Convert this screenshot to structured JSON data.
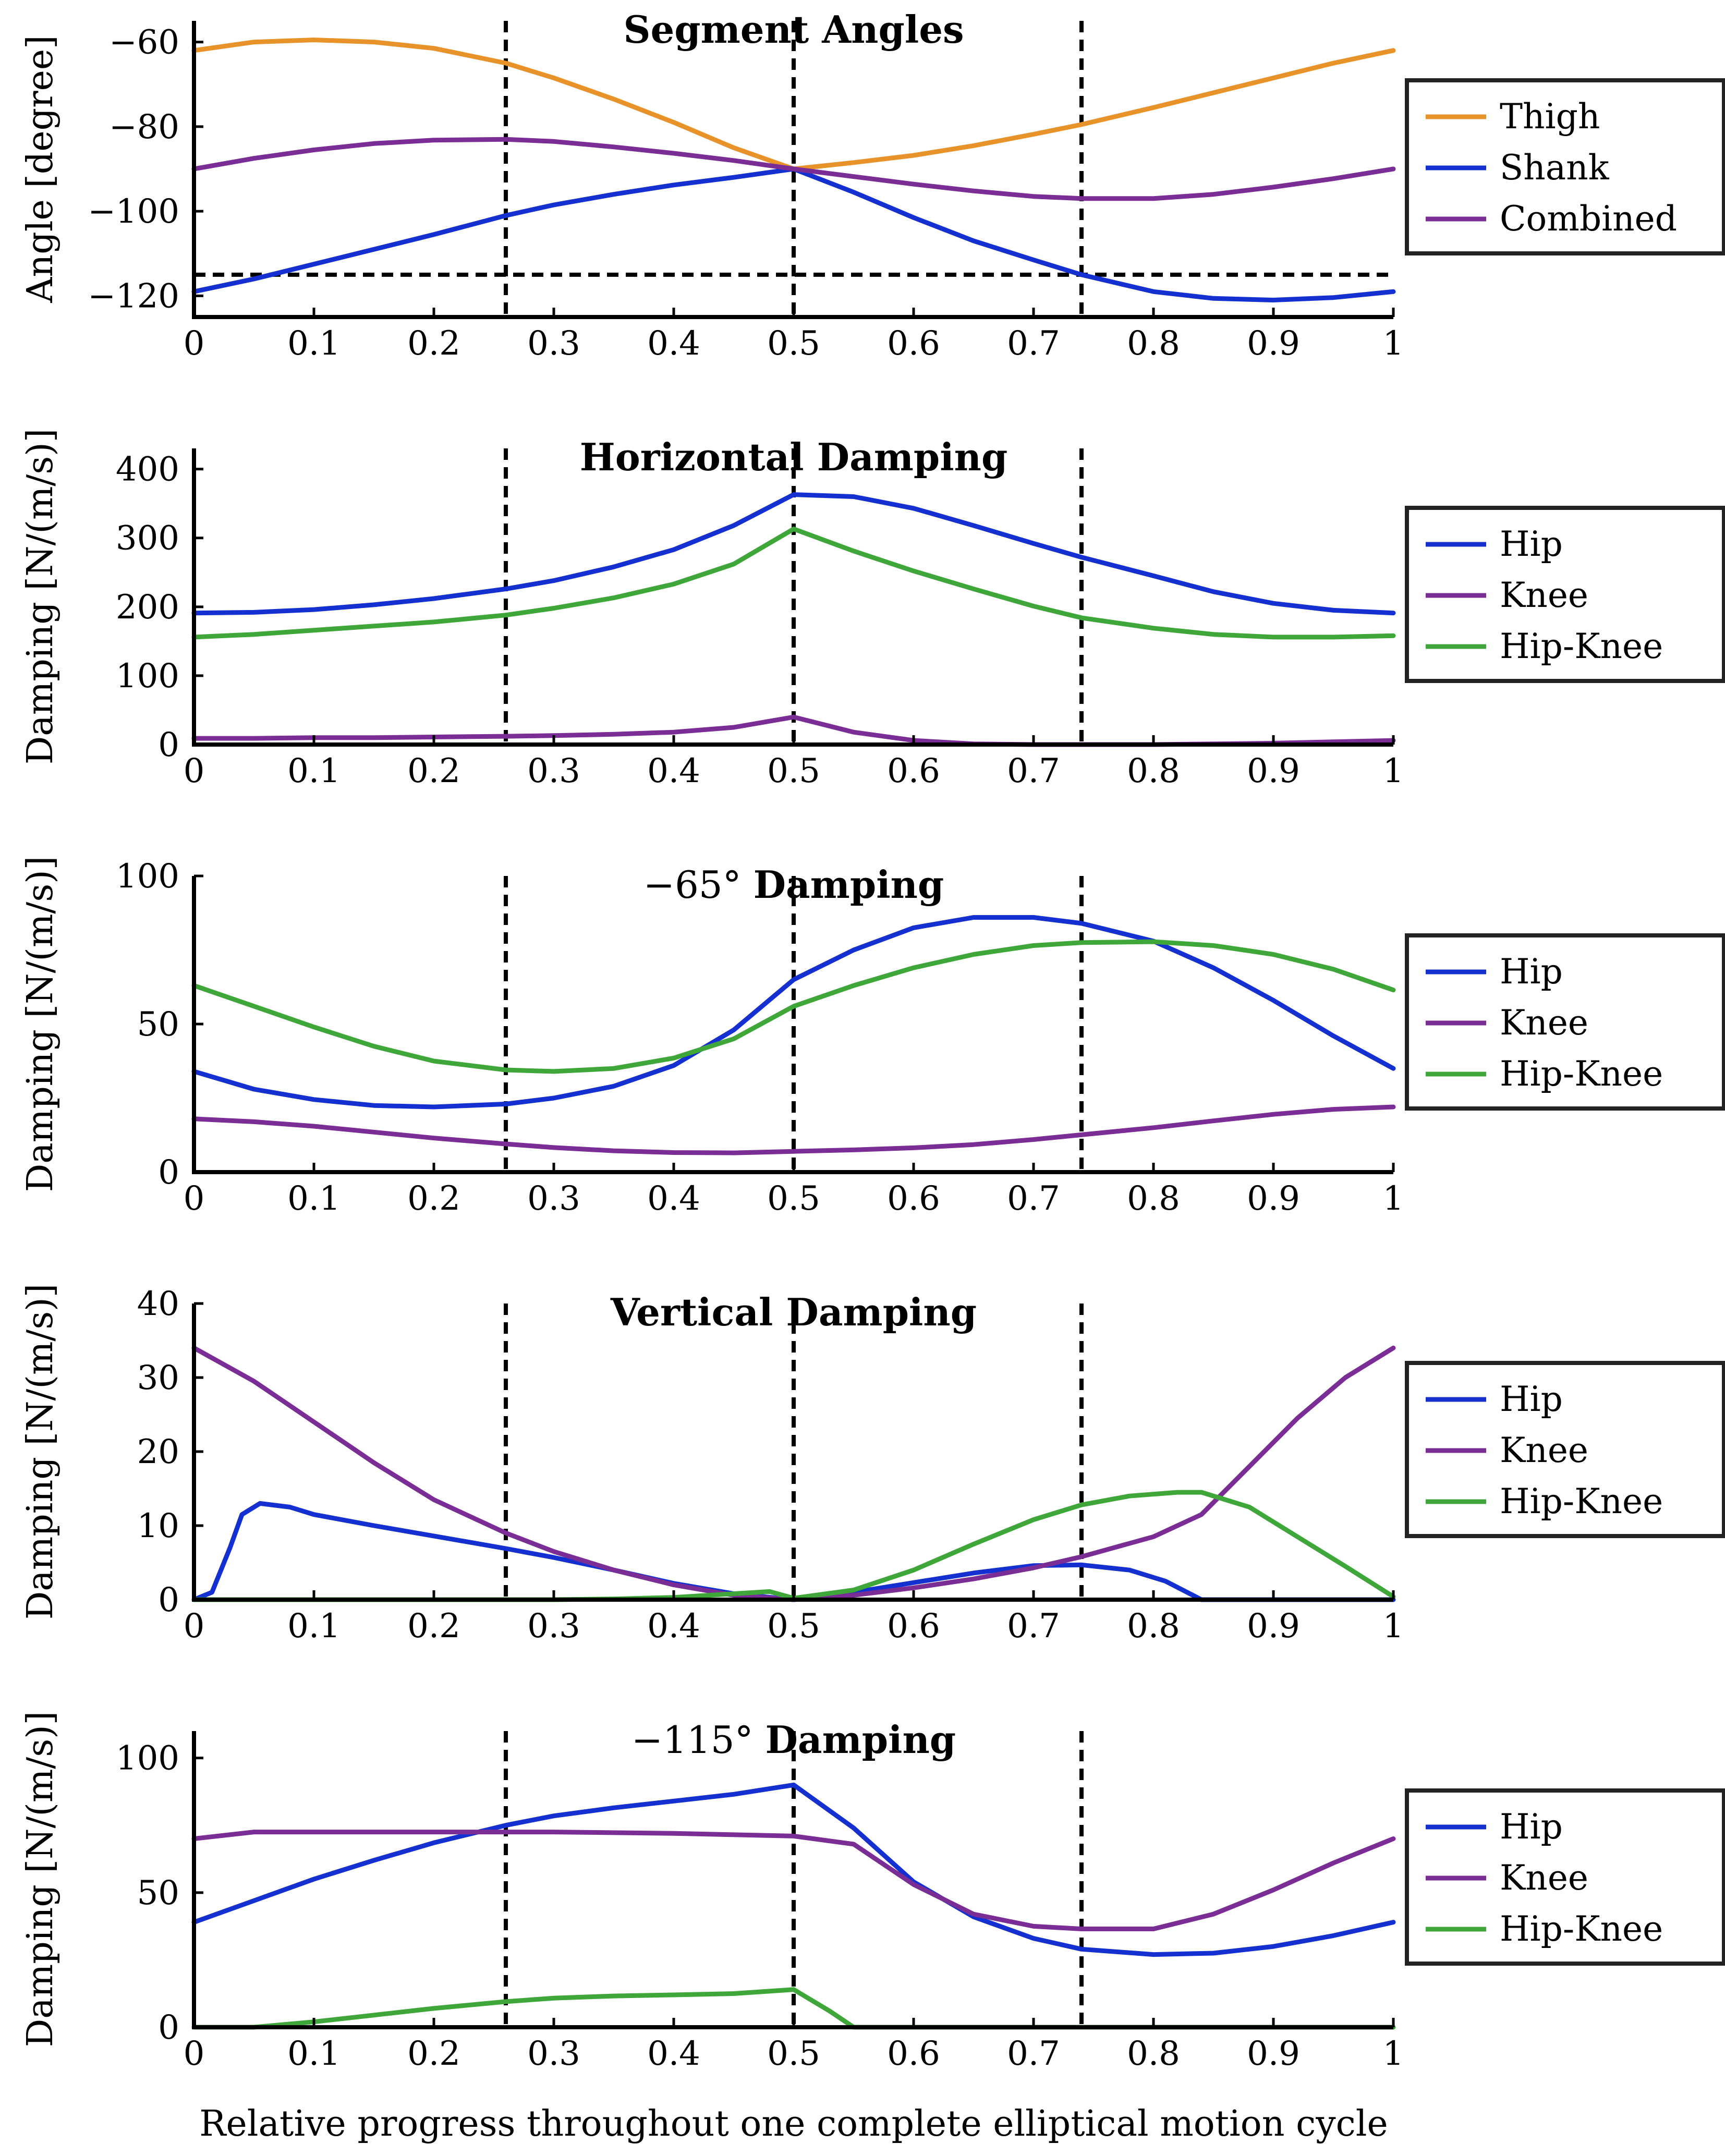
{
  "figure": {
    "xlabel": "Relative progress throughout one complete elliptical motion cycle"
  },
  "colors": {
    "orange": "#e8922a",
    "blue": "#1530d0",
    "purple": "#7b2d96",
    "green": "#3fa73a"
  },
  "chart_data": [
    {
      "type": "line",
      "title_prefix": "",
      "title": "Segment Angles",
      "xlabel": "",
      "ylabel": "Angle [degree]",
      "xlim": [
        0,
        1
      ],
      "ylim": [
        -125,
        -55
      ],
      "xticks": [
        0,
        0.1,
        0.2,
        0.3,
        0.4,
        0.5,
        0.6,
        0.7,
        0.8,
        0.9,
        1
      ],
      "xtick_labels": [
        "0",
        "0.1",
        "0.2",
        "0.3",
        "0.4",
        "0.5",
        "0.6",
        "0.7",
        "0.8",
        "0.9",
        "1"
      ],
      "yticks": [
        -120,
        -100,
        -80,
        -60
      ],
      "ytick_labels": [
        "−120",
        "−100",
        "−80",
        "−60"
      ],
      "vlines": [
        0.26,
        0.5,
        0.74
      ],
      "hlines": [
        -115
      ],
      "series": [
        {
          "name": "Thigh",
          "color": "orange",
          "x": [
            0,
            0.05,
            0.1,
            0.15,
            0.2,
            0.26,
            0.3,
            0.35,
            0.4,
            0.45,
            0.5,
            0.55,
            0.6,
            0.65,
            0.7,
            0.74,
            0.8,
            0.85,
            0.9,
            0.95,
            1
          ],
          "y": [
            -62,
            -60,
            -59.5,
            -60,
            -61.5,
            -65,
            -68.5,
            -73.5,
            -79,
            -85,
            -90,
            -88.5,
            -86.8,
            -84.5,
            -81.8,
            -79.5,
            -75.5,
            -72,
            -68.5,
            -65,
            -62
          ]
        },
        {
          "name": "Shank",
          "color": "blue",
          "x": [
            0,
            0.05,
            0.1,
            0.15,
            0.2,
            0.26,
            0.3,
            0.35,
            0.4,
            0.45,
            0.5,
            0.55,
            0.6,
            0.65,
            0.7,
            0.74,
            0.8,
            0.85,
            0.9,
            0.95,
            1
          ],
          "y": [
            -119,
            -116,
            -112.5,
            -109,
            -105.5,
            -101,
            -98.5,
            -96,
            -93.8,
            -92,
            -90,
            -95.5,
            -101.5,
            -107,
            -111.5,
            -115,
            -119,
            -120.6,
            -121,
            -120.4,
            -119
          ]
        },
        {
          "name": "Combined",
          "color": "purple",
          "x": [
            0,
            0.05,
            0.1,
            0.15,
            0.2,
            0.26,
            0.3,
            0.35,
            0.4,
            0.45,
            0.5,
            0.55,
            0.6,
            0.65,
            0.7,
            0.74,
            0.8,
            0.85,
            0.9,
            0.95,
            1
          ],
          "y": [
            -90,
            -87.5,
            -85.5,
            -84,
            -83.2,
            -83,
            -83.5,
            -84.8,
            -86.3,
            -88,
            -90,
            -91.8,
            -93.6,
            -95.2,
            -96.5,
            -97,
            -97,
            -96,
            -94.3,
            -92.3,
            -90
          ]
        }
      ],
      "legend": [
        "Thigh",
        "Shank",
        "Combined"
      ],
      "legend_position": "right"
    },
    {
      "type": "line",
      "title_prefix": "",
      "title": "Horizontal Damping",
      "xlabel": "",
      "ylabel": "Damping [N/(m/s)]",
      "xlim": [
        0,
        1
      ],
      "ylim": [
        0,
        430
      ],
      "xticks": [
        0,
        0.1,
        0.2,
        0.3,
        0.4,
        0.5,
        0.6,
        0.7,
        0.8,
        0.9,
        1
      ],
      "xtick_labels": [
        "0",
        "0.1",
        "0.2",
        "0.3",
        "0.4",
        "0.5",
        "0.6",
        "0.7",
        "0.8",
        "0.9",
        "1"
      ],
      "yticks": [
        0,
        100,
        200,
        300,
        400
      ],
      "ytick_labels": [
        "0",
        "100",
        "200",
        "300",
        "400"
      ],
      "vlines": [
        0.26,
        0.5,
        0.74
      ],
      "hlines": [],
      "series": [
        {
          "name": "Hip",
          "color": "blue",
          "x": [
            0,
            0.05,
            0.1,
            0.15,
            0.2,
            0.26,
            0.3,
            0.35,
            0.4,
            0.45,
            0.5,
            0.55,
            0.6,
            0.65,
            0.7,
            0.74,
            0.8,
            0.85,
            0.9,
            0.95,
            1
          ],
          "y": [
            191,
            192,
            196,
            203,
            212,
            226,
            238,
            258,
            283,
            318,
            363,
            360,
            343,
            318,
            292,
            272,
            245,
            222,
            205,
            195,
            191
          ]
        },
        {
          "name": "Knee",
          "color": "purple",
          "x": [
            0,
            0.05,
            0.1,
            0.15,
            0.2,
            0.26,
            0.3,
            0.35,
            0.4,
            0.45,
            0.5,
            0.55,
            0.6,
            0.65,
            0.7,
            0.74,
            0.8,
            0.85,
            0.9,
            0.95,
            1
          ],
          "y": [
            9,
            9,
            10,
            10,
            11,
            12,
            13,
            15,
            18,
            25,
            40,
            18,
            6,
            1,
            0,
            0,
            0,
            1,
            2,
            4,
            6
          ]
        },
        {
          "name": "Hip-Knee",
          "color": "green",
          "x": [
            0,
            0.05,
            0.1,
            0.15,
            0.2,
            0.26,
            0.3,
            0.35,
            0.4,
            0.45,
            0.5,
            0.55,
            0.6,
            0.65,
            0.7,
            0.74,
            0.8,
            0.85,
            0.9,
            0.95,
            1
          ],
          "y": [
            156,
            160,
            166,
            172,
            178,
            188,
            198,
            213,
            233,
            262,
            313,
            281,
            252,
            226,
            201,
            184,
            169,
            160,
            156,
            156,
            158
          ]
        }
      ],
      "legend": [
        "Hip",
        "Knee",
        "Hip-Knee"
      ],
      "legend_position": "right"
    },
    {
      "type": "line",
      "title_prefix": "−65°",
      "title": "Damping",
      "xlabel": "",
      "ylabel": "Damping [N/(m/s)]",
      "xlim": [
        0,
        1
      ],
      "ylim": [
        0,
        100
      ],
      "xticks": [
        0,
        0.1,
        0.2,
        0.3,
        0.4,
        0.5,
        0.6,
        0.7,
        0.8,
        0.9,
        1
      ],
      "xtick_labels": [
        "0",
        "0.1",
        "0.2",
        "0.3",
        "0.4",
        "0.5",
        "0.6",
        "0.7",
        "0.8",
        "0.9",
        "1"
      ],
      "yticks": [
        0,
        50,
        100
      ],
      "ytick_labels": [
        "0",
        "50",
        "100"
      ],
      "vlines": [
        0.26,
        0.5,
        0.74
      ],
      "hlines": [],
      "series": [
        {
          "name": "Hip",
          "color": "blue",
          "x": [
            0,
            0.05,
            0.1,
            0.15,
            0.2,
            0.26,
            0.3,
            0.35,
            0.4,
            0.45,
            0.5,
            0.55,
            0.6,
            0.65,
            0.7,
            0.74,
            0.8,
            0.85,
            0.9,
            0.95,
            1
          ],
          "y": [
            34,
            28,
            24.5,
            22.5,
            22,
            23,
            25,
            29,
            36,
            48,
            65,
            75,
            82.5,
            86,
            86,
            84,
            78,
            69,
            58,
            46,
            35
          ]
        },
        {
          "name": "Knee",
          "color": "purple",
          "x": [
            0,
            0.05,
            0.1,
            0.15,
            0.2,
            0.26,
            0.3,
            0.35,
            0.4,
            0.45,
            0.5,
            0.55,
            0.6,
            0.65,
            0.7,
            0.74,
            0.8,
            0.85,
            0.9,
            0.95,
            1
          ],
          "y": [
            18,
            17,
            15.5,
            13.5,
            11.5,
            9.5,
            8.3,
            7.2,
            6.6,
            6.5,
            7,
            7.5,
            8.2,
            9.3,
            11,
            12.6,
            15,
            17.3,
            19.5,
            21.2,
            22
          ]
        },
        {
          "name": "Hip-Knee",
          "color": "green",
          "x": [
            0,
            0.05,
            0.1,
            0.15,
            0.2,
            0.26,
            0.3,
            0.35,
            0.4,
            0.45,
            0.5,
            0.55,
            0.6,
            0.65,
            0.7,
            0.74,
            0.8,
            0.85,
            0.9,
            0.95,
            1
          ],
          "y": [
            63,
            56,
            49,
            42.5,
            37.5,
            34.5,
            34,
            35,
            38.5,
            45,
            56,
            63,
            69,
            73.5,
            76.5,
            77.5,
            77.8,
            76.5,
            73.5,
            68.5,
            61.5
          ]
        }
      ],
      "legend": [
        "Hip",
        "Knee",
        "Hip-Knee"
      ],
      "legend_position": "right"
    },
    {
      "type": "line",
      "title_prefix": "",
      "title": "Vertical Damping",
      "xlabel": "",
      "ylabel": "Damping [N/(m/s)]",
      "xlim": [
        0,
        1
      ],
      "ylim": [
        0,
        40
      ],
      "xticks": [
        0,
        0.1,
        0.2,
        0.3,
        0.4,
        0.5,
        0.6,
        0.7,
        0.8,
        0.9,
        1
      ],
      "xtick_labels": [
        "0",
        "0.1",
        "0.2",
        "0.3",
        "0.4",
        "0.5",
        "0.6",
        "0.7",
        "0.8",
        "0.9",
        "1"
      ],
      "yticks": [
        0,
        10,
        20,
        30,
        40
      ],
      "ytick_labels": [
        "0",
        "10",
        "20",
        "30",
        "40"
      ],
      "vlines": [
        0.26,
        0.5,
        0.74
      ],
      "hlines": [],
      "series": [
        {
          "name": "Hip",
          "color": "blue",
          "x": [
            0,
            0.015,
            0.03,
            0.04,
            0.055,
            0.08,
            0.1,
            0.15,
            0.2,
            0.26,
            0.3,
            0.35,
            0.4,
            0.45,
            0.5,
            0.55,
            0.6,
            0.65,
            0.7,
            0.74,
            0.78,
            0.81,
            0.84,
            0.9,
            1
          ],
          "y": [
            0,
            1,
            7,
            11.5,
            13,
            12.5,
            11.5,
            10,
            8.6,
            6.9,
            5.7,
            4,
            2.2,
            0.8,
            0,
            1,
            2.3,
            3.6,
            4.6,
            4.7,
            4,
            2.5,
            0,
            0,
            0
          ]
        },
        {
          "name": "Knee",
          "color": "purple",
          "x": [
            0,
            0.05,
            0.1,
            0.15,
            0.2,
            0.26,
            0.3,
            0.35,
            0.4,
            0.45,
            0.5,
            0.55,
            0.6,
            0.65,
            0.7,
            0.74,
            0.8,
            0.84,
            0.88,
            0.92,
            0.96,
            1
          ],
          "y": [
            34,
            29.5,
            24,
            18.5,
            13.5,
            9,
            6.5,
            4,
            2,
            0.6,
            0,
            0.6,
            1.6,
            2.8,
            4.3,
            5.8,
            8.5,
            11.5,
            18,
            24.5,
            30,
            34
          ]
        },
        {
          "name": "Hip-Knee",
          "color": "green",
          "x": [
            0,
            0.1,
            0.2,
            0.3,
            0.35,
            0.4,
            0.45,
            0.48,
            0.5,
            0.55,
            0.6,
            0.65,
            0.7,
            0.74,
            0.78,
            0.82,
            0.84,
            0.88,
            0.92,
            0.96,
            1
          ],
          "y": [
            0,
            0,
            0,
            0,
            0.1,
            0.3,
            0.8,
            1.1,
            0.2,
            1.3,
            4,
            7.5,
            10.8,
            12.8,
            14,
            14.5,
            14.5,
            12.5,
            8.5,
            4.5,
            0.4
          ]
        }
      ],
      "legend": [
        "Hip",
        "Knee",
        "Hip-Knee"
      ],
      "legend_position": "right"
    },
    {
      "type": "line",
      "title_prefix": "−115°",
      "title": "Damping",
      "xlabel": "",
      "ylabel": "Damping [N/(m/s)]",
      "xlim": [
        0,
        1
      ],
      "ylim": [
        0,
        110
      ],
      "xticks": [
        0,
        0.1,
        0.2,
        0.3,
        0.4,
        0.5,
        0.6,
        0.7,
        0.8,
        0.9,
        1
      ],
      "xtick_labels": [
        "0",
        "0.1",
        "0.2",
        "0.3",
        "0.4",
        "0.5",
        "0.6",
        "0.7",
        "0.8",
        "0.9",
        "1"
      ],
      "yticks": [
        0,
        50,
        100
      ],
      "ytick_labels": [
        "0",
        "50",
        "100"
      ],
      "vlines": [
        0.26,
        0.5,
        0.74
      ],
      "hlines": [],
      "series": [
        {
          "name": "Hip",
          "color": "blue",
          "x": [
            0,
            0.05,
            0.1,
            0.15,
            0.2,
            0.26,
            0.3,
            0.35,
            0.4,
            0.45,
            0.5,
            0.55,
            0.6,
            0.65,
            0.7,
            0.74,
            0.8,
            0.85,
            0.9,
            0.95,
            1
          ],
          "y": [
            39,
            47,
            55,
            62,
            68.5,
            75,
            78.5,
            81.5,
            84,
            86.5,
            90,
            74,
            54,
            41,
            33,
            29,
            27,
            27.5,
            30,
            34,
            39
          ]
        },
        {
          "name": "Knee",
          "color": "purple",
          "x": [
            0,
            0.05,
            0.1,
            0.2,
            0.3,
            0.4,
            0.5,
            0.55,
            0.6,
            0.65,
            0.7,
            0.74,
            0.8,
            0.85,
            0.9,
            0.95,
            1
          ],
          "y": [
            70,
            72.5,
            72.5,
            72.5,
            72.5,
            72,
            71,
            68,
            53,
            42,
            37.5,
            36.5,
            36.5,
            42,
            51,
            61,
            70
          ]
        },
        {
          "name": "Hip-Knee",
          "color": "green",
          "x": [
            0,
            0.05,
            0.1,
            0.15,
            0.2,
            0.26,
            0.3,
            0.35,
            0.4,
            0.45,
            0.5,
            0.53,
            0.55,
            0.6,
            0.7,
            0.8,
            0.9,
            1
          ],
          "y": [
            0,
            0,
            2,
            4.5,
            7,
            9.5,
            10.8,
            11.6,
            12,
            12.5,
            14,
            6,
            0,
            0,
            0,
            0,
            0,
            0
          ]
        }
      ],
      "legend": [
        "Hip",
        "Knee",
        "Hip-Knee"
      ],
      "legend_position": "right"
    }
  ]
}
